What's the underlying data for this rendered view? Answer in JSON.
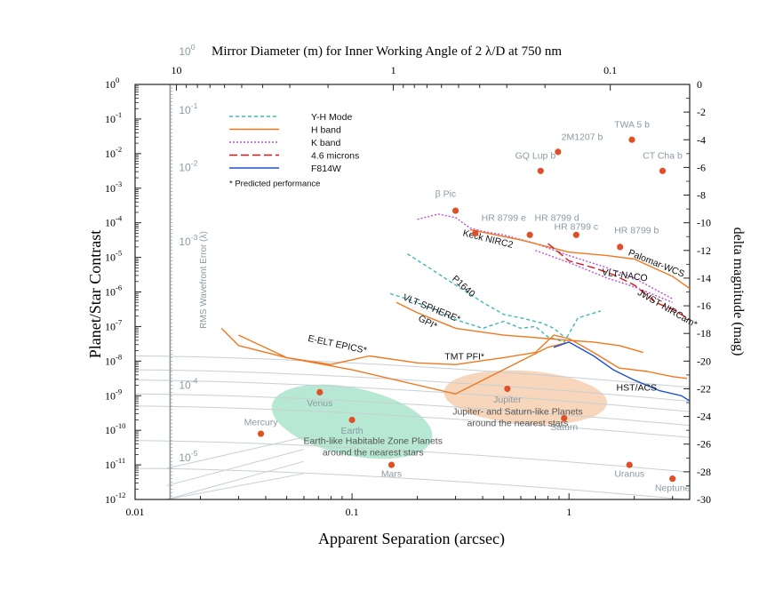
{
  "chart_data": {
    "type": "scatter",
    "title": "Mirror Diameter (m) for Inner Working Angle of 2 λ/D at 750 nm",
    "xlabel": "Apparent Separation (arcsec)",
    "ylabel": "Planet/Star Contrast",
    "y2label": "delta magnitude (mag)",
    "wfe_label": "RMS Wavefront Error (λ)",
    "xscale": "log",
    "yscale": "log",
    "xlim": [
      0.01,
      3.6
    ],
    "ylim": [
      1e-12,
      1
    ],
    "x_ticks": [
      {
        "value": 0.01,
        "label": "0.01"
      },
      {
        "value": 0.1,
        "label": "0.1"
      },
      {
        "value": 1,
        "label": "1"
      }
    ],
    "y_ticks": [
      {
        "exp": 0,
        "base": "10",
        "sup": "0"
      },
      {
        "exp": -1,
        "base": "10",
        "sup": "-1"
      },
      {
        "exp": -2,
        "base": "10",
        "sup": "-2"
      },
      {
        "exp": -3,
        "base": "10",
        "sup": "-3"
      },
      {
        "exp": -4,
        "base": "10",
        "sup": "-4"
      },
      {
        "exp": -5,
        "base": "10",
        "sup": "-5"
      },
      {
        "exp": -6,
        "base": "10",
        "sup": "-6"
      },
      {
        "exp": -7,
        "base": "10",
        "sup": "-7"
      },
      {
        "exp": -8,
        "base": "10",
        "sup": "-8"
      },
      {
        "exp": -9,
        "base": "10",
        "sup": "-9"
      },
      {
        "exp": -10,
        "base": "10",
        "sup": "-10"
      },
      {
        "exp": -11,
        "base": "10",
        "sup": "-11"
      },
      {
        "exp": -12,
        "base": "10",
        "sup": "-12"
      }
    ],
    "top_ticks": [
      {
        "mirror": 10,
        "x": 0.0155,
        "label": "10"
      },
      {
        "mirror": 1,
        "x": 0.155,
        "label": "1"
      },
      {
        "mirror": 0.1,
        "x": 1.55,
        "label": "0.1"
      }
    ],
    "right_ticks": [
      0,
      -2,
      -4,
      -6,
      -8,
      -10,
      -12,
      -14,
      -16,
      -18,
      -20,
      -22,
      -24,
      -26,
      -28,
      -30
    ],
    "wfe_axis_x": 0.0145,
    "wfe_labels": [
      {
        "y": 0.85,
        "base": "10",
        "sup": "0"
      },
      {
        "y": -0.85,
        "base": "10",
        "sup": "-1"
      },
      {
        "y": -2.5,
        "base": "10",
        "sup": "-2"
      },
      {
        "y": -4.65,
        "base": "10",
        "sup": "-3"
      },
      {
        "y": -8.8,
        "base": "10",
        "sup": "-4"
      },
      {
        "y": -10.9,
        "base": "10",
        "sup": "-5"
      }
    ],
    "legend": {
      "placement": "upper-left",
      "entries": [
        {
          "name": "Y-H Mode",
          "color": "#40b8b8",
          "dash": "4,3"
        },
        {
          "name": "H band",
          "color": "#f07820",
          "dash": ""
        },
        {
          "name": "K band",
          "color": "#c050d0",
          "dash": "2,2"
        },
        {
          "name": "4.6 microns",
          "color": "#d81818",
          "dash": "9,4"
        },
        {
          "name": "F814W",
          "color": "#2050d0",
          "dash": ""
        }
      ],
      "note": "* Predicted performance"
    },
    "planets": [
      {
        "name": "Mercury",
        "x": 0.038,
        "y": -10.1,
        "lx": 0.038,
        "ly": -9.85,
        "color": "#e05028"
      },
      {
        "name": "Venus",
        "x": 0.071,
        "y": -8.9,
        "lx": 0.071,
        "ly": -9.3,
        "color": "#e05028"
      },
      {
        "name": "Earth",
        "x": 0.1,
        "y": -9.7,
        "lx": 0.1,
        "ly": -10.1,
        "color": "#e05028"
      },
      {
        "name": "Mars",
        "x": 0.152,
        "y": -11.0,
        "lx": 0.152,
        "ly": -11.35,
        "color": "#e05028"
      },
      {
        "name": "Jupiter",
        "x": 0.52,
        "y": -8.8,
        "lx": 0.52,
        "ly": -9.2,
        "color": "#e05028"
      },
      {
        "name": "Saturn",
        "x": 0.95,
        "y": -9.65,
        "lx": 0.95,
        "ly": -10.0,
        "color": "#e05028"
      },
      {
        "name": "Uranus",
        "x": 1.9,
        "y": -11.0,
        "lx": 1.9,
        "ly": -11.35,
        "color": "#e05028"
      },
      {
        "name": "Neptune",
        "x": 3.0,
        "y": -11.4,
        "lx": 3.0,
        "ly": -11.75,
        "color": "#e05028"
      },
      {
        "name": "β Pic",
        "x": 0.3,
        "y": -3.65,
        "lx": 0.27,
        "ly": -3.25,
        "color": "#e05028"
      },
      {
        "name": "HR 8799 e",
        "x": 0.37,
        "y": -4.3,
        "lx": 0.5,
        "ly": -3.95,
        "color": "#e05028"
      },
      {
        "name": "HR 8799 d",
        "x": 0.66,
        "y": -4.35,
        "lx": 0.88,
        "ly": -3.95,
        "color": "#e05028"
      },
      {
        "name": "HR 8799 c",
        "x": 1.08,
        "y": -4.35,
        "lx": 1.08,
        "ly": -4.2,
        "color": "#e05028"
      },
      {
        "name": "HR 8799 b",
        "x": 1.72,
        "y": -4.7,
        "lx": 2.05,
        "ly": -4.3,
        "color": "#e05028"
      },
      {
        "name": "GQ Lup b",
        "x": 0.74,
        "y": -2.5,
        "lx": 0.7,
        "ly": -2.15,
        "color": "#e05028"
      },
      {
        "name": "2M1207 b",
        "x": 0.89,
        "y": -1.95,
        "lx": 1.15,
        "ly": -1.6,
        "color": "#e05028"
      },
      {
        "name": "TWA 5 b",
        "x": 1.95,
        "y": -1.6,
        "lx": 1.95,
        "ly": -1.25,
        "color": "#e05028"
      },
      {
        "name": "CT Cha b",
        "x": 2.7,
        "y": -2.5,
        "lx": 2.7,
        "ly": -2.15,
        "color": "#e05028"
      }
    ],
    "regions": [
      {
        "name": "Earth-like Habitable Zone Planets around the nearest stars",
        "lines": [
          "Earth-like Habitable Zone Planets",
          "around the nearest stars"
        ],
        "color": "#9ee0c4",
        "cx": 0.1,
        "cy": -9.75,
        "label_x": 0.125,
        "label_y": -10.4
      },
      {
        "name": "Jupiter- and Saturn-like Planets around the nearest stars",
        "lines": [
          "Jupiter- and Saturn-like Planets",
          "around the nearest stars"
        ],
        "color": "#f4c8a4",
        "cx": 0.63,
        "cy": -9.05,
        "label_x": 0.58,
        "label_y": -9.55
      }
    ],
    "series": [
      {
        "name": "Keck NIRC2",
        "band": "K band",
        "color": "#c050d0",
        "dash": "2,2",
        "label": "Keck NIRC2",
        "lx": 0.42,
        "ly": -4.55,
        "rot": 14,
        "x": [
          0.2,
          0.25,
          0.3,
          0.35,
          0.4,
          0.5,
          0.7,
          1.0,
          1.5,
          2.0,
          3.0
        ],
        "y": [
          -3.9,
          -3.75,
          -3.85,
          -4.15,
          -4.25,
          -4.35,
          -4.6,
          -4.95,
          -5.3,
          -5.6,
          -6.2
        ]
      },
      {
        "name": "Palomar-WCS",
        "band": "H band",
        "color": "#f07820",
        "dash": "",
        "label": "Palomar-WCS",
        "lx": 2.5,
        "ly": -5.25,
        "rot": 22,
        "x": [
          0.35,
          0.6,
          1.0,
          1.5,
          2.0,
          3.0,
          3.6
        ],
        "y": [
          -4.2,
          -4.5,
          -4.85,
          -4.95,
          -5.05,
          -5.55,
          -5.9
        ]
      },
      {
        "name": "VLT-NACO",
        "band": "4.6 microns",
        "color": "#d81818",
        "dash": "9,4",
        "label": "VLT-NACO",
        "lx": 1.8,
        "ly": -5.6,
        "rot": 8,
        "x": [
          0.8,
          1.0,
          1.3,
          1.6,
          2.0,
          2.5,
          3.0,
          3.6
        ],
        "y": [
          -4.6,
          -5.1,
          -5.3,
          -5.5,
          -5.8,
          -6.3,
          -6.5,
          -6.8
        ]
      },
      {
        "name": "JWST NIRCam*",
        "band": "K band",
        "color": "#c050d0",
        "dash": "2,2",
        "label": "JWST NIRCam*",
        "lx": 2.8,
        "ly": -6.55,
        "rot": 30,
        "x": [
          0.7,
          1.0,
          1.5,
          2.0,
          2.5,
          3.0
        ],
        "y": [
          -4.8,
          -5.15,
          -5.6,
          -5.85,
          -6.1,
          -6.3
        ]
      },
      {
        "name": "P1640",
        "band": "Y-H Mode",
        "color": "#40b8b8",
        "dash": "4,3",
        "label": "P1640",
        "lx": 0.32,
        "ly": -5.9,
        "rot": 42,
        "x": [
          0.18,
          0.22,
          0.3,
          0.4,
          0.5,
          0.6,
          0.75,
          0.85,
          0.95
        ],
        "y": [
          -4.9,
          -5.25,
          -5.8,
          -6.3,
          -6.65,
          -6.75,
          -6.9,
          -7.05,
          -7.3
        ]
      },
      {
        "name": "VLT-SPHERE*",
        "band": "Y-H Mode",
        "color": "#40b8b8",
        "dash": "4,3",
        "label": "VLT-SPHERE*",
        "lx": 0.23,
        "ly": -6.55,
        "rot": 22,
        "x": [
          0.15,
          0.2,
          0.3,
          0.4,
          0.5,
          0.6,
          0.7,
          0.8,
          0.95,
          1.1,
          1.4
        ],
        "y": [
          -6.05,
          -6.3,
          -6.8,
          -7.05,
          -6.85,
          -7.05,
          -7.0,
          -7.3,
          -7.45,
          -6.75,
          -6.55
        ]
      },
      {
        "name": "GPI*",
        "band": "H band",
        "color": "#f07820",
        "dash": "",
        "label": "GPI*",
        "lx": 0.22,
        "ly": -6.95,
        "rot": 28,
        "x": [
          0.16,
          0.2,
          0.3,
          0.5,
          0.8,
          1.0,
          1.3,
          1.7,
          2.2
        ],
        "y": [
          -6.3,
          -6.6,
          -7.05,
          -7.25,
          -7.35,
          -7.4,
          -7.45,
          -7.55,
          -7.75
        ]
      },
      {
        "name": "E-ELT EPICS*",
        "band": "H band",
        "color": "#f07820",
        "dash": "",
        "label": "E-ELT EPICS*",
        "lx": 0.085,
        "ly": -7.6,
        "rot": 12,
        "x": [
          0.025,
          0.03,
          0.05,
          0.1,
          0.3,
          0.8,
          1.0
        ],
        "y": [
          -7.05,
          -7.55,
          -7.9,
          -8.25,
          -8.95,
          -7.6,
          -7.45
        ]
      },
      {
        "name": "TMT PFI*",
        "band": "H band",
        "color": "#f07820",
        "dash": "",
        "label": "TMT PFI*",
        "lx": 0.33,
        "ly": -7.95,
        "rot": 0,
        "x": [
          0.03,
          0.05,
          0.08,
          0.12,
          0.2,
          0.3,
          0.5,
          0.7,
          0.85,
          1.0,
          1.3,
          1.7,
          2.3,
          3.0,
          3.5
        ],
        "y": [
          -7.25,
          -7.9,
          -8.1,
          -7.85,
          -8.05,
          -8.1,
          -7.9,
          -7.75,
          -7.25,
          -7.35,
          -7.75,
          -8.2,
          -8.3,
          -8.45,
          -8.5
        ]
      },
      {
        "name": "HST/ACS",
        "band": "F814W",
        "color": "#2050d0",
        "dash": "",
        "label": "HST/ACS",
        "lx": 2.05,
        "ly": -8.85,
        "rot": 0,
        "x": [
          0.85,
          1.0,
          1.3,
          1.6,
          2.0,
          2.6,
          3.3,
          3.6
        ],
        "y": [
          -7.6,
          -7.45,
          -7.85,
          -8.25,
          -8.55,
          -8.85,
          -9.0,
          -9.15
        ]
      }
    ]
  }
}
